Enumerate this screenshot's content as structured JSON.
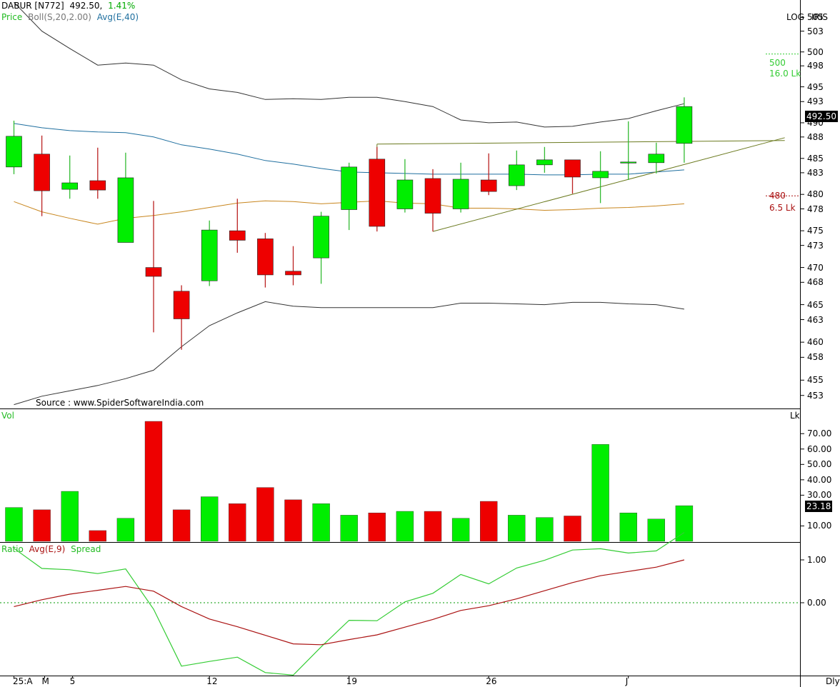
{
  "header": {
    "symbol": "DABUR [N772]",
    "price": "492.50,",
    "change": "1.41%",
    "legend_price": "Price",
    "legend_boll": "Boll(S,20,2.00)",
    "legend_avg": "Avg(E,40)",
    "log_label": "LOG",
    "iris_label": "IRIS",
    "source": "Source : www.SpiderSoftwareIndia.com"
  },
  "colors": {
    "up": "#00ee00",
    "down": "#ee0000",
    "boll_band": "#333333",
    "boll_mid": "#c8861e",
    "avg40": "#1f6f9f",
    "trend": "#6b7a1f",
    "ratio": "#33cc33",
    "ratio_avg": "#aa1111",
    "zero_line": "#009900"
  },
  "price_panel": {
    "y_ticks": [
      "505",
      "503",
      "500",
      "498",
      "495",
      "493",
      "490",
      "488",
      "485",
      "483",
      "480",
      "478",
      "475",
      "473",
      "470",
      "468",
      "465",
      "463",
      "460",
      "458",
      "455",
      "453"
    ],
    "current_tag": "492.50",
    "alert_upper": {
      "price": "500",
      "qty": "16.0 Lk"
    },
    "alert_lower": {
      "price": "480",
      "qty": "6.5 Lk"
    }
  },
  "volume_panel": {
    "title": "Vol",
    "unit": "Lk",
    "y_ticks": [
      "70.00",
      "60.00",
      "50.00",
      "40.00",
      "30.00",
      "10.00"
    ],
    "current_tag": "23.18"
  },
  "ratio_panel": {
    "title_ratio": "Ratio",
    "title_avg": "Avg(E,9)",
    "title_spread": "Spread",
    "y_ticks": [
      "1.00",
      "0.00"
    ]
  },
  "x_axis": {
    "labels": [
      "25:A",
      "M",
      "5",
      "12",
      "19",
      "26",
      "J"
    ],
    "period": "Dly"
  },
  "chart_data": [
    {
      "type": "candlestick",
      "title": "DABUR [N772]",
      "y_scale": "log",
      "ylim": [
        451.5,
        507
      ],
      "candles": [
        {
          "o": 484,
          "h": 490.5,
          "l": 483,
          "c": 488.3
        },
        {
          "o": 485.8,
          "h": 488.4,
          "l": 477.2,
          "c": 480.7
        },
        {
          "o": 480.9,
          "h": 485.6,
          "l": 479.6,
          "c": 481.8
        },
        {
          "o": 482.1,
          "h": 486.7,
          "l": 479.6,
          "c": 480.8
        },
        {
          "o": 473.6,
          "h": 486,
          "l": 473.6,
          "c": 482.5
        },
        {
          "o": 470.2,
          "h": 479.3,
          "l": 461.5,
          "c": 469
        },
        {
          "o": 467,
          "h": 467.8,
          "l": 459.2,
          "c": 463.3
        },
        {
          "o": 468.4,
          "h": 476.6,
          "l": 467.7,
          "c": 475.3
        },
        {
          "o": 475.2,
          "h": 479.6,
          "l": 472.2,
          "c": 473.9
        },
        {
          "o": 474.1,
          "h": 474.9,
          "l": 467.5,
          "c": 469.2
        },
        {
          "o": 469.7,
          "h": 473.1,
          "l": 467.8,
          "c": 469.2
        },
        {
          "o": 471.5,
          "h": 477.8,
          "l": 468,
          "c": 477.2
        },
        {
          "o": 478.1,
          "h": 484.6,
          "l": 475.3,
          "c": 484
        },
        {
          "o": 485.1,
          "h": 486.8,
          "l": 475.1,
          "c": 475.8
        },
        {
          "o": 478.2,
          "h": 485.1,
          "l": 477.7,
          "c": 482.2
        },
        {
          "o": 482.4,
          "h": 483.7,
          "l": 475.1,
          "c": 477.6
        },
        {
          "o": 478.2,
          "h": 484.6,
          "l": 477.7,
          "c": 482.3
        },
        {
          "o": 482.2,
          "h": 485.9,
          "l": 480.1,
          "c": 480.6
        },
        {
          "o": 481.4,
          "h": 486.3,
          "l": 480.8,
          "c": 484.3
        },
        {
          "o": 484.3,
          "h": 486.8,
          "l": 483.2,
          "c": 485
        },
        {
          "o": 485,
          "h": 485,
          "l": 480.3,
          "c": 482.6
        },
        {
          "o": 482.5,
          "h": 486.2,
          "l": 479,
          "c": 483.4
        },
        {
          "o": 484.6,
          "h": 490.4,
          "l": 482.2,
          "c": 484.7
        },
        {
          "o": 484.6,
          "h": 487.4,
          "l": 483.1,
          "c": 485.8
        },
        {
          "o": 487.3,
          "h": 493.8,
          "l": 484.6,
          "c": 492.5
        }
      ],
      "bollinger_upper": [
        507.5,
        503.3,
        500.8,
        498.4,
        498.7,
        498.4,
        496.3,
        495.0,
        494.5,
        493.5,
        493.6,
        493.5,
        493.8,
        493.8,
        493.2,
        492.5,
        490.6,
        490.2,
        490.3,
        489.6,
        489.7,
        490.3,
        490.8,
        491.9,
        492.9
      ],
      "bollinger_mid": [
        479.2,
        477.8,
        476.9,
        476.1,
        476.9,
        477.3,
        477.8,
        478.4,
        479.0,
        479.3,
        479.2,
        478.9,
        479.1,
        479.3,
        479.0,
        478.9,
        478.3,
        478.3,
        478.2,
        478.0,
        478.1,
        478.3,
        478.4,
        478.6,
        478.9
      ],
      "bollinger_lower": [
        452.0,
        453.1,
        453.8,
        454.5,
        455.4,
        456.5,
        459.6,
        462.4,
        464.1,
        465.6,
        465.0,
        464.8,
        464.8,
        464.8,
        464.8,
        464.8,
        465.4,
        465.4,
        465.3,
        465.2,
        465.5,
        465.5,
        465.3,
        465.2,
        464.6
      ],
      "ema40": [
        490.1,
        489.5,
        489.1,
        488.9,
        488.8,
        488.2,
        487.1,
        486.5,
        485.8,
        484.9,
        484.4,
        483.8,
        483.3,
        483.2,
        483.1,
        483.0,
        483.0,
        483.0,
        483.0,
        482.9,
        482.9,
        483.0,
        483.0,
        483.3,
        483.6
      ],
      "trendlines": [
        {
          "from_index": 13,
          "from": 487.2,
          "to_index": 27.6,
          "to": 487.7
        },
        {
          "from_index": 15,
          "from": 475.1,
          "to_index": 27.6,
          "to": 488.1
        }
      ]
    },
    {
      "type": "bar",
      "title": "Vol",
      "ylabel": "Lk",
      "ylim": [
        0,
        78
      ],
      "values": [
        22,
        20.5,
        32.5,
        7,
        15,
        78,
        20.5,
        29,
        24.5,
        35,
        27,
        24.5,
        17,
        18.5,
        19.5,
        19.5,
        15,
        26,
        17,
        15.5,
        16.5,
        63,
        18.5,
        14.5,
        23.18
      ]
    },
    {
      "type": "line",
      "title": "Ratio",
      "ylim": [
        -1.7,
        1.4
      ],
      "series": [
        {
          "name": "Ratio",
          "values": [
            1.27,
            0.8,
            0.77,
            0.68,
            0.79,
            -0.15,
            -1.48,
            -1.37,
            -1.27,
            -1.63,
            -1.69,
            -1.03,
            -0.41,
            -0.42,
            0.02,
            0.22,
            0.66,
            0.44,
            0.81,
            0.99,
            1.23,
            1.26,
            1.16,
            1.21,
            1.64
          ]
        },
        {
          "name": "Avg(E,9)",
          "values": [
            -0.09,
            0.07,
            0.2,
            0.29,
            0.38,
            0.27,
            -0.09,
            -0.38,
            -0.56,
            -0.76,
            -0.96,
            -0.98,
            -0.86,
            -0.75,
            -0.57,
            -0.39,
            -0.18,
            -0.07,
            0.09,
            0.28,
            0.47,
            0.63,
            0.73,
            0.83,
            1.0
          ]
        }
      ],
      "reference_line": 0
    }
  ]
}
